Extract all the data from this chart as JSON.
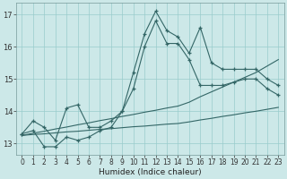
{
  "xlabel": "Humidex (Indice chaleur)",
  "bg_color": "#cce8e8",
  "grid_color": "#99cccc",
  "line_color": "#336666",
  "x": [
    0,
    1,
    2,
    3,
    4,
    5,
    6,
    7,
    8,
    9,
    10,
    11,
    12,
    13,
    14,
    15,
    16,
    17,
    18,
    19,
    20,
    21,
    22,
    23
  ],
  "wavy_upper": [
    13.3,
    13.7,
    13.5,
    13.1,
    14.1,
    14.2,
    13.5,
    13.5,
    13.7,
    14.0,
    15.2,
    16.4,
    17.1,
    16.5,
    16.3,
    15.8,
    16.6,
    15.5,
    15.3,
    15.3,
    15.3,
    15.3,
    15.0,
    14.8
  ],
  "wavy_lower": [
    13.3,
    13.4,
    12.9,
    12.9,
    13.2,
    13.1,
    13.2,
    13.4,
    13.5,
    14.0,
    14.7,
    16.0,
    16.8,
    16.1,
    16.1,
    15.6,
    14.8,
    14.8,
    14.8,
    14.9,
    15.0,
    15.0,
    14.7,
    14.5
  ],
  "straight_upper": [
    13.25,
    13.32,
    13.38,
    13.45,
    13.51,
    13.58,
    13.64,
    13.71,
    13.77,
    13.84,
    13.9,
    13.97,
    14.03,
    14.1,
    14.16,
    14.28,
    14.45,
    14.6,
    14.75,
    14.9,
    15.05,
    15.2,
    15.4,
    15.6
  ],
  "straight_lower": [
    13.25,
    13.28,
    13.3,
    13.33,
    13.36,
    13.38,
    13.41,
    13.44,
    13.46,
    13.49,
    13.52,
    13.54,
    13.57,
    13.6,
    13.62,
    13.67,
    13.73,
    13.78,
    13.84,
    13.89,
    13.95,
    14.0,
    14.06,
    14.12
  ],
  "ylim_bottom": 12.65,
  "ylim_top": 17.35,
  "yticks": [
    13,
    14,
    15,
    16,
    17
  ],
  "xticks": [
    0,
    1,
    2,
    3,
    4,
    5,
    6,
    7,
    8,
    9,
    10,
    11,
    12,
    13,
    14,
    15,
    16,
    17,
    18,
    19,
    20,
    21,
    22,
    23
  ],
  "tick_fontsize": 5.5,
  "xlabel_fontsize": 6.5,
  "linewidth": 0.8,
  "marker": "+",
  "markersize": 3.5,
  "markeredgewidth": 0.9
}
